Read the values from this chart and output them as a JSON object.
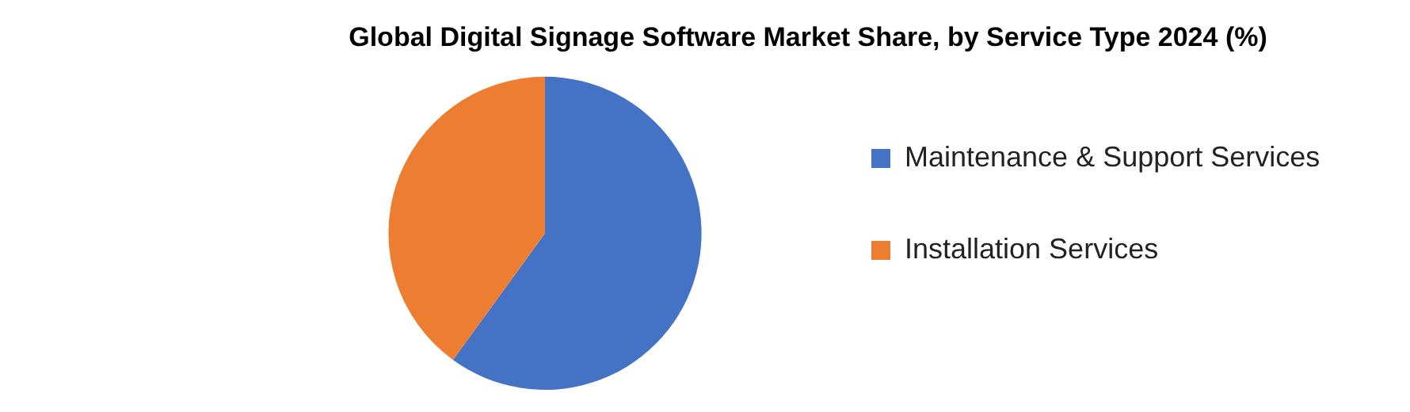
{
  "chart_data": {
    "type": "pie",
    "title": "Global Digital Signage Software Market Share, by Service Type 2024 (%)",
    "categories": [
      "Maintenance & Support Services",
      "Installation Services"
    ],
    "values": [
      60,
      40
    ],
    "colors": [
      "#4472c4",
      "#ed7d31"
    ],
    "legend": "right"
  }
}
